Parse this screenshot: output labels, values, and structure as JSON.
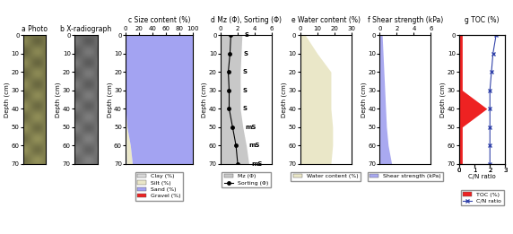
{
  "chart_data": [
    {
      "type": "image",
      "title": "a Photo",
      "ylabel": "Depth (cm)",
      "ylim": [
        70,
        0
      ],
      "yticks": [
        0,
        10,
        20,
        30,
        40,
        50,
        60,
        70
      ],
      "tick_labels": "y",
      "color": "#8c8a55"
    },
    {
      "type": "image",
      "title": "b X-radiograph",
      "ylabel": "Depth (cm)",
      "ylim": [
        70,
        0
      ],
      "yticks": [
        0,
        10,
        20,
        30,
        40,
        50,
        60,
        70
      ],
      "tick_labels": "y",
      "color": "#7a7a7a"
    },
    {
      "type": "area",
      "title": "c Size content (%)",
      "ylabel": "Depth (cm)",
      "orientation": "horizontal",
      "stacked": true,
      "legend": "upper center",
      "y": [
        0,
        10,
        20,
        30,
        40,
        50,
        60,
        70
      ],
      "xlim": [
        0,
        100
      ],
      "xticks": [
        0,
        20,
        40,
        60,
        80,
        100
      ],
      "ylim": [
        70,
        0
      ],
      "yticks": [
        0,
        10,
        20,
        30,
        40,
        50,
        60,
        70
      ],
      "series": [
        {
          "name": "Clay (%)",
          "type": "area",
          "color": "#d9d9d9",
          "values": [
            0,
            0,
            0,
            0,
            0,
            0,
            1,
            2
          ]
        },
        {
          "name": "Silt (%)",
          "type": "area",
          "color": "#eae7c8",
          "values": [
            0,
            0,
            0,
            0,
            0,
            2,
            6,
            8
          ]
        },
        {
          "name": "Sand (%)",
          "type": "area",
          "color": "#a3a3f2",
          "values": [
            100,
            100,
            100,
            100,
            100,
            98,
            93,
            90
          ]
        },
        {
          "name": "Gravel (%)",
          "type": "area",
          "color": "#ee2222",
          "values": [
            0,
            0,
            0,
            0,
            0,
            0,
            0,
            0
          ]
        }
      ]
    },
    {
      "type": "area",
      "title": "d Mz (Φ), Sorting (Φ)",
      "ylabel": "Depth (cm)",
      "orientation": "horizontal",
      "stacked": false,
      "legend": "upper center",
      "y": [
        0,
        10,
        20,
        30,
        40,
        50,
        60,
        70
      ],
      "xlim": [
        0,
        6
      ],
      "xticks": [
        0,
        2,
        4,
        6
      ],
      "ylim": [
        70,
        0
      ],
      "yticks": [
        0,
        10,
        20,
        30,
        40,
        50,
        60,
        70
      ],
      "series": [
        {
          "name": "Mz (Φ)",
          "type": "area",
          "color": "#c8c8c8",
          "values": [
            2.5,
            2.4,
            2.3,
            2.3,
            2.3,
            2.6,
            3.0,
            3.3
          ],
          "point_labels": [
            "S",
            "S",
            "S",
            "S",
            "S",
            "mS",
            "mS",
            "mS"
          ]
        },
        {
          "name": "Sorting (Φ)",
          "type": "line",
          "color": "#000000",
          "marker": "circle",
          "line_style": "solid",
          "values": [
            1.2,
            1.1,
            0.9,
            1.0,
            1.0,
            1.4,
            1.8,
            2.0
          ]
        }
      ]
    },
    {
      "type": "area",
      "title": "e Water content (%)",
      "ylabel": "Depth (cm)",
      "orientation": "horizontal",
      "stacked": false,
      "legend": "upper center",
      "y": [
        0,
        10,
        20,
        30,
        40,
        50,
        60,
        70
      ],
      "xlim": [
        0,
        30
      ],
      "xticks": [
        0,
        10,
        20,
        30
      ],
      "ylim": [
        70,
        0
      ],
      "yticks": [
        0,
        10,
        20,
        30,
        40,
        50,
        60,
        70
      ],
      "series": [
        {
          "name": "Water content (%)",
          "type": "area",
          "color": "#eae7c8",
          "values": [
            3,
            10,
            18,
            18,
            18,
            19,
            19,
            18
          ]
        }
      ]
    },
    {
      "type": "area",
      "title": "f Shear strength (kPa)",
      "ylabel": "Depth (cm)",
      "orientation": "horizontal",
      "stacked": false,
      "legend": "upper center",
      "y": [
        0,
        10,
        20,
        30,
        40,
        50,
        60,
        70
      ],
      "xlim": [
        0,
        6
      ],
      "xticks": [
        0,
        2,
        4,
        6
      ],
      "ylim": [
        70,
        0
      ],
      "yticks": [
        0,
        10,
        20,
        30,
        40,
        50,
        60,
        70
      ],
      "series": [
        {
          "name": "Shear strength (kPa)",
          "type": "area",
          "color": "#a9a9f0",
          "values": [
            0.3,
            0.4,
            0.5,
            0.6,
            0.7,
            0.8,
            1.0,
            1.4
          ]
        }
      ]
    },
    {
      "type": "area",
      "title": "g TOC (%)",
      "ylabel": "Depth (cm)",
      "x2label": "C/N ratio",
      "orientation": "horizontal",
      "stacked": false,
      "legend": "upper center",
      "y": [
        0,
        10,
        20,
        30,
        40,
        50,
        60,
        70
      ],
      "xlim": [
        0,
        3
      ],
      "xticks": [
        0,
        1,
        2,
        3
      ],
      "x2lim": [
        0,
        3
      ],
      "x2ticks": [
        0,
        1,
        2,
        3
      ],
      "ylim": [
        70,
        0
      ],
      "yticks": [
        0,
        10,
        20,
        30,
        40,
        50,
        60,
        70
      ],
      "series": [
        {
          "name": "TOC (%)",
          "type": "area",
          "color": "#ee2222",
          "values": [
            0.2,
            0.2,
            0.2,
            0.2,
            1.8,
            0.2,
            0.2,
            0.2
          ]
        },
        {
          "name": "C/N ratio",
          "type": "line",
          "axis": "x2",
          "color": "#3344aa",
          "marker": "x",
          "line_style": "solid",
          "values": [
            2.4,
            2.2,
            2.1,
            2.0,
            2.0,
            2.0,
            2.0,
            2.0
          ]
        }
      ]
    }
  ]
}
